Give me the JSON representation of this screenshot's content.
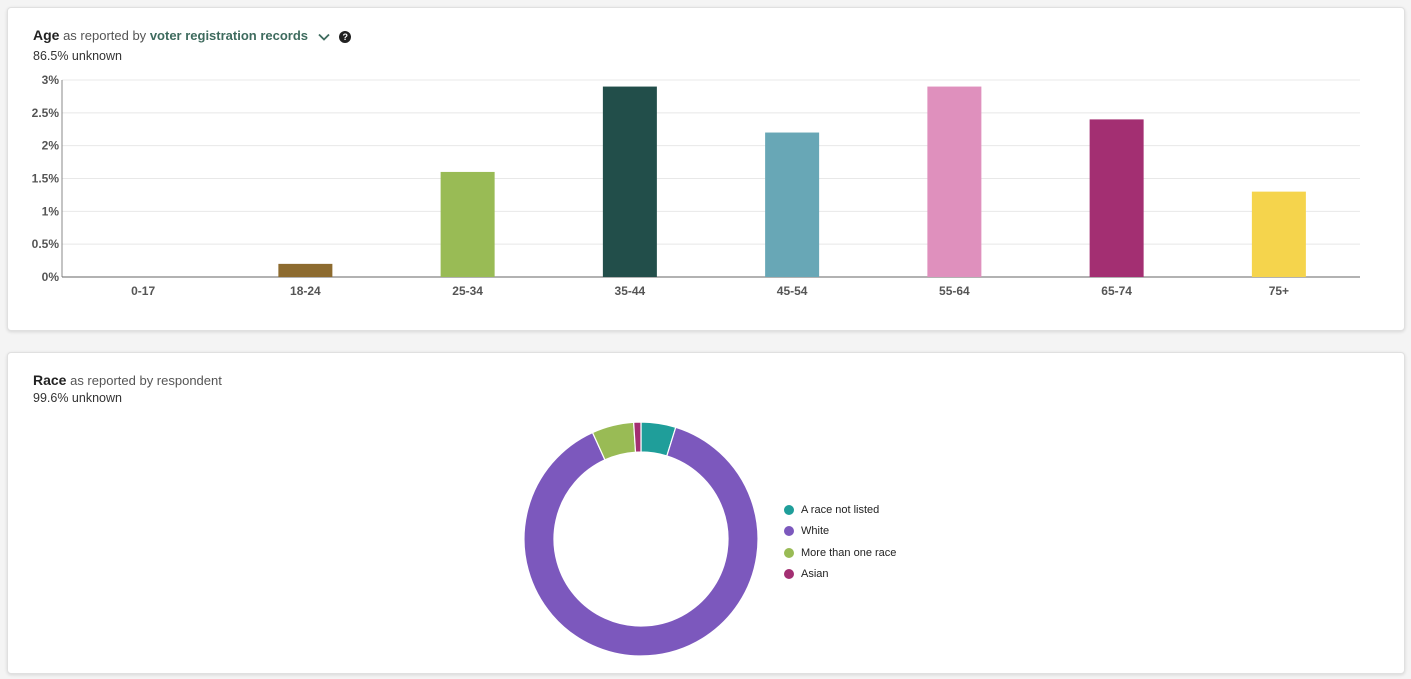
{
  "age": {
    "title": "Age",
    "reported_prefix": "as reported by",
    "source_label": "voter registration records",
    "unknown_text": "86.5% unknown"
  },
  "race": {
    "title": "Race",
    "reported_text": "as reported by respondent",
    "unknown_text": "99.6% unknown"
  },
  "chart_data": [
    {
      "type": "bar",
      "title": "Age",
      "categories": [
        "0-17",
        "18-24",
        "25-34",
        "35-44",
        "45-54",
        "55-64",
        "65-74",
        "75+"
      ],
      "values": [
        0,
        0.2,
        1.6,
        2.9,
        2.2,
        2.9,
        2.4,
        1.3
      ],
      "colors": [
        "#8d6b2f",
        "#8d6b2f",
        "#99bb55",
        "#224e4a",
        "#68a7b6",
        "#df90bd",
        "#a32f72",
        "#f5d44c"
      ],
      "yticks": [
        "0%",
        "0.5%",
        "1%",
        "1.5%",
        "2%",
        "2.5%",
        "3%"
      ],
      "ylim": [
        0,
        3
      ],
      "unit": "%",
      "grid": true
    },
    {
      "type": "pie",
      "title": "Race",
      "donut": true,
      "labels": [
        "A race not listed",
        "White",
        "More than one race",
        "Asian"
      ],
      "values": [
        4.8,
        88.4,
        5.8,
        1.0
      ],
      "colors": [
        "#1f9e9a",
        "#7c58bd",
        "#99bb55",
        "#a32f72"
      ],
      "legend": "right"
    }
  ]
}
